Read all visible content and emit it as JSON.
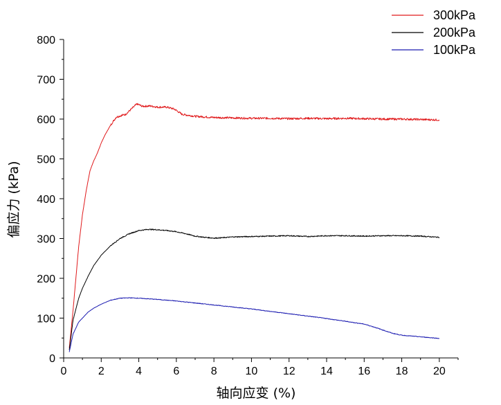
{
  "chart_data": {
    "type": "line",
    "xlabel": "轴向应变 (%)",
    "ylabel": "偏应力 (kPa)",
    "xlim": [
      0,
      21
    ],
    "ylim": [
      0,
      800
    ],
    "xticks": [
      0,
      2,
      4,
      6,
      8,
      10,
      12,
      14,
      16,
      18,
      20
    ],
    "yticks": [
      0,
      100,
      200,
      300,
      400,
      500,
      600,
      700,
      800
    ],
    "grid": false,
    "legend_position": "top-right",
    "series": [
      {
        "name": "300kPa",
        "color": "#e0191b",
        "points": [
          [
            0.3,
            25
          ],
          [
            0.5,
            120
          ],
          [
            0.8,
            280
          ],
          [
            1.0,
            360
          ],
          [
            1.2,
            420
          ],
          [
            1.4,
            470
          ],
          [
            1.6,
            495
          ],
          [
            1.8,
            515
          ],
          [
            2.0,
            540
          ],
          [
            2.2,
            560
          ],
          [
            2.5,
            585
          ],
          [
            2.8,
            605
          ],
          [
            3.0,
            608
          ],
          [
            3.3,
            612
          ],
          [
            3.6,
            625
          ],
          [
            3.9,
            638
          ],
          [
            4.2,
            632
          ],
          [
            4.6,
            633
          ],
          [
            5.0,
            630
          ],
          [
            5.5,
            630
          ],
          [
            5.9,
            625
          ],
          [
            6.3,
            612
          ],
          [
            7.0,
            607
          ],
          [
            8.0,
            604
          ],
          [
            9.0,
            603
          ],
          [
            10.0,
            602
          ],
          [
            11.0,
            602
          ],
          [
            12.0,
            601
          ],
          [
            13.0,
            602
          ],
          [
            14.0,
            601
          ],
          [
            15.0,
            602
          ],
          [
            16.0,
            601
          ],
          [
            17.0,
            600
          ],
          [
            18.0,
            600
          ],
          [
            19.0,
            599
          ],
          [
            20.0,
            598
          ]
        ]
      },
      {
        "name": "200kPa",
        "color": "#000000",
        "points": [
          [
            0.3,
            20
          ],
          [
            0.5,
            95
          ],
          [
            0.8,
            150
          ],
          [
            1.0,
            175
          ],
          [
            1.3,
            205
          ],
          [
            1.6,
            232
          ],
          [
            2.0,
            258
          ],
          [
            2.5,
            282
          ],
          [
            3.0,
            300
          ],
          [
            3.5,
            312
          ],
          [
            4.0,
            320
          ],
          [
            4.5,
            323
          ],
          [
            5.0,
            322
          ],
          [
            5.5,
            320
          ],
          [
            6.0,
            317
          ],
          [
            6.5,
            312
          ],
          [
            7.0,
            306
          ],
          [
            7.5,
            303
          ],
          [
            8.0,
            301
          ],
          [
            8.5,
            302
          ],
          [
            9.0,
            304
          ],
          [
            10.0,
            305
          ],
          [
            11.0,
            306
          ],
          [
            12.0,
            307
          ],
          [
            13.0,
            305
          ],
          [
            14.0,
            307
          ],
          [
            15.0,
            307
          ],
          [
            16.0,
            306
          ],
          [
            17.0,
            307
          ],
          [
            18.0,
            307
          ],
          [
            19.0,
            306
          ],
          [
            20.0,
            303
          ]
        ]
      },
      {
        "name": "100kPa",
        "color": "#1a1ab0",
        "points": [
          [
            0.3,
            15
          ],
          [
            0.5,
            60
          ],
          [
            0.8,
            90
          ],
          [
            1.0,
            100
          ],
          [
            1.3,
            115
          ],
          [
            1.6,
            125
          ],
          [
            2.0,
            135
          ],
          [
            2.5,
            145
          ],
          [
            3.0,
            150
          ],
          [
            3.5,
            151
          ],
          [
            4.0,
            150
          ],
          [
            5.0,
            147
          ],
          [
            6.0,
            143
          ],
          [
            7.0,
            138
          ],
          [
            8.0,
            133
          ],
          [
            9.0,
            128
          ],
          [
            10.0,
            123
          ],
          [
            11.0,
            117
          ],
          [
            12.0,
            111
          ],
          [
            13.0,
            105
          ],
          [
            14.0,
            99
          ],
          [
            15.0,
            92
          ],
          [
            16.0,
            85
          ],
          [
            16.5,
            78
          ],
          [
            17.0,
            70
          ],
          [
            17.5,
            62
          ],
          [
            18.0,
            57
          ],
          [
            18.5,
            55
          ],
          [
            19.0,
            53
          ],
          [
            19.5,
            51
          ],
          [
            20.0,
            49
          ]
        ]
      }
    ]
  }
}
